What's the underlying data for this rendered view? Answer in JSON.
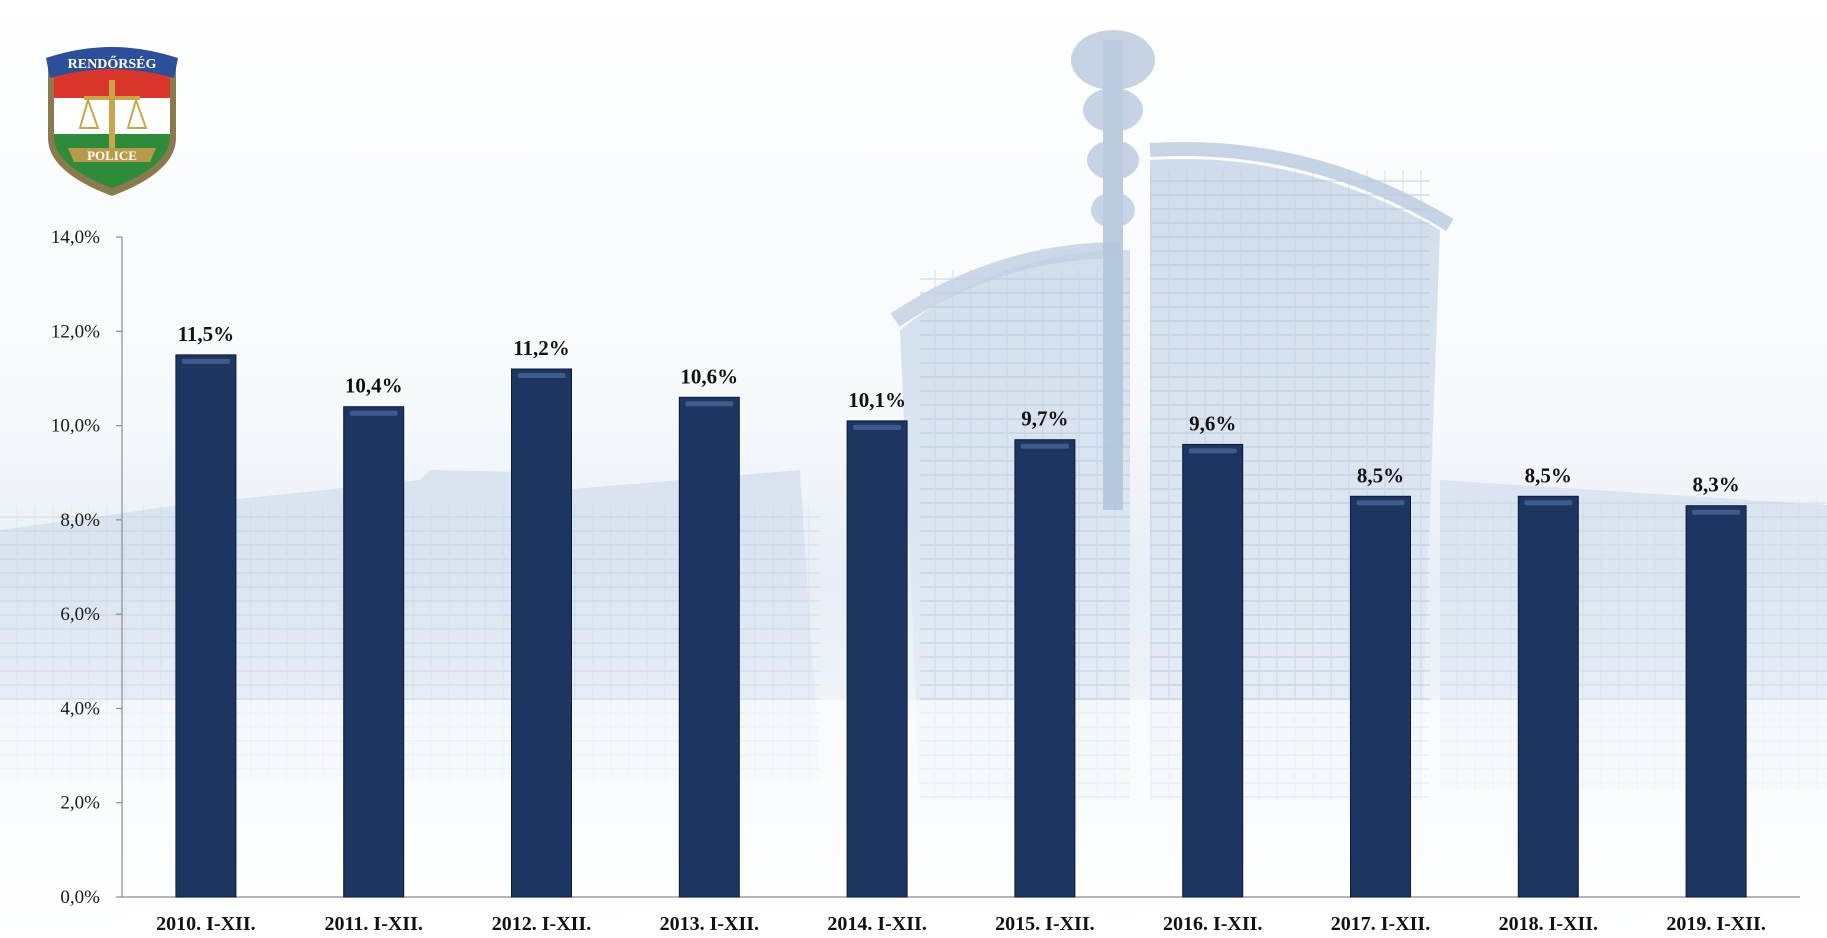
{
  "logo": {
    "top_text": "RENDŐRSÉG",
    "bottom_text": "POLICE"
  },
  "chart_data": {
    "type": "bar",
    "title": "",
    "xlabel": "",
    "ylabel": "",
    "categories": [
      "2010. I-XII.",
      "2011. I-XII.",
      "2012. I-XII.",
      "2013. I-XII.",
      "2014. I-XII.",
      "2015. I-XII.",
      "2016. I-XII.",
      "2017. I-XII.",
      "2018. I-XII.",
      "2019. I-XII."
    ],
    "values": [
      11.5,
      10.4,
      11.2,
      10.6,
      10.1,
      9.7,
      9.6,
      8.5,
      8.5,
      8.3
    ],
    "data_labels": [
      "11,5%",
      "10,4%",
      "11,2%",
      "10,6%",
      "10,1%",
      "9,7%",
      "9,6%",
      "8,5%",
      "8,5%",
      "8,3%"
    ],
    "y_ticks": [
      "0,0%",
      "2,0%",
      "4,0%",
      "6,0%",
      "8,0%",
      "10,0%",
      "12,0%",
      "14,0%"
    ],
    "ylim": [
      0,
      14
    ],
    "grid": false,
    "legend": "none",
    "bar_color": "#1c3561"
  }
}
